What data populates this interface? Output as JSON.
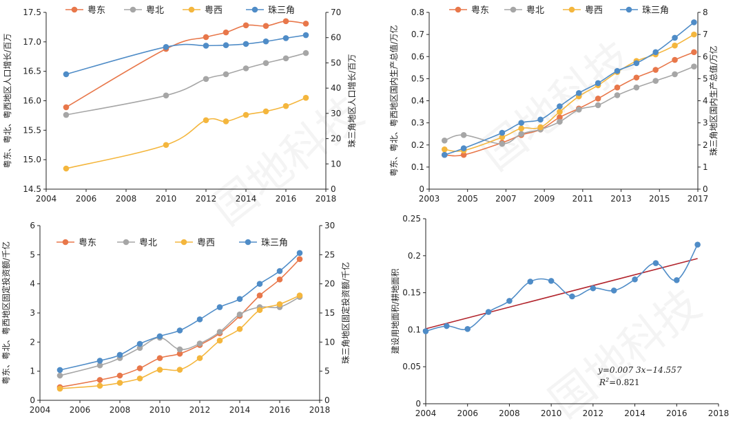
{
  "colors": {
    "yuedong": "#e8774a",
    "yuebei": "#a6a6a6",
    "yuexi": "#f4b63d",
    "prd": "#4f8cc7",
    "trend": "#b2262e"
  },
  "watermark": [
    "国地科技",
    "国地科技",
    "国地科技"
  ],
  "chart_data": [
    {
      "id": "population",
      "type": "line",
      "legend": [
        "粤东",
        "粤北",
        "粤西",
        "珠三角"
      ],
      "xlim": [
        2004,
        2018
      ],
      "xticks": [
        2004,
        2006,
        2008,
        2010,
        2012,
        2014,
        2016,
        2018
      ],
      "ylabel": "粤东、粤北、粤西地区人口增长/百万",
      "y2label": "珠三角地区人口增长/百万",
      "ylim": [
        14.5,
        17.5
      ],
      "yticks": [
        "14.5",
        "15.0",
        "15.5",
        "16.0",
        "16.5",
        "17.0",
        "17.5"
      ],
      "y2lim": [
        0,
        70
      ],
      "y2ticks": [
        "0",
        "10",
        "20",
        "30",
        "40",
        "50",
        "60",
        "70"
      ],
      "series": [
        {
          "name": "粤东",
          "color": "#e8774a",
          "axis": "left",
          "x": [
            2005,
            2010,
            2012,
            2013,
            2014,
            2015,
            2016,
            2017
          ],
          "values": [
            15.89,
            16.88,
            17.08,
            17.16,
            17.28,
            17.27,
            17.35,
            17.31
          ]
        },
        {
          "name": "粤北",
          "color": "#a6a6a6",
          "axis": "left",
          "x": [
            2005,
            2010,
            2012,
            2013,
            2014,
            2015,
            2016,
            2017
          ],
          "values": [
            15.76,
            16.09,
            16.37,
            16.45,
            16.55,
            16.64,
            16.72,
            16.81
          ]
        },
        {
          "name": "粤西",
          "color": "#f4b63d",
          "axis": "left",
          "x": [
            2005,
            2010,
            2012,
            2013,
            2014,
            2015,
            2016,
            2017
          ],
          "values": [
            14.85,
            15.25,
            15.67,
            15.65,
            15.76,
            15.82,
            15.91,
            16.05
          ]
        },
        {
          "name": "珠三角",
          "color": "#4f8cc7",
          "axis": "right",
          "x": [
            2005,
            2010,
            2012,
            2013,
            2014,
            2015,
            2016,
            2017
          ],
          "values": [
            45.5,
            56.3,
            56.8,
            57.0,
            57.5,
            58.5,
            59.8,
            61.0
          ]
        }
      ]
    },
    {
      "id": "gdp",
      "type": "line",
      "legend": [
        "粤东",
        "粤北",
        "粤西",
        "珠三角"
      ],
      "xlim": [
        2003,
        2017
      ],
      "xticks": [
        2003,
        2005,
        2007,
        2009,
        2011,
        2013,
        2015,
        2017
      ],
      "ylabel": "粤东、粤北、粤西地区国内生产总值/万亿",
      "y2label": "珠三角地区国内生产总值/万亿",
      "ylim": [
        0,
        0.8
      ],
      "yticks": [
        "0",
        "0.1",
        "0.2",
        "0.3",
        "0.4",
        "0.5",
        "0.6",
        "0.7",
        "0.8"
      ],
      "y2lim": [
        0,
        8
      ],
      "y2ticks": [
        "0",
        "1",
        "2",
        "3",
        "4",
        "5",
        "6",
        "7",
        "8"
      ],
      "series": [
        {
          "name": "粤东",
          "color": "#e8774a",
          "axis": "left",
          "x": [
            2003.8,
            2004.8,
            2006.8,
            2007.8,
            2008.8,
            2009.8,
            2010.8,
            2011.8,
            2012.8,
            2013.8,
            2014.8,
            2015.8,
            2016.8
          ],
          "values": [
            0.155,
            0.155,
            0.21,
            0.245,
            0.27,
            0.325,
            0.365,
            0.41,
            0.46,
            0.505,
            0.54,
            0.585,
            0.62
          ]
        },
        {
          "name": "粤北",
          "color": "#a6a6a6",
          "axis": "left",
          "x": [
            2003.8,
            2004.8,
            2006.8,
            2007.8,
            2008.8,
            2009.8,
            2010.8,
            2011.8,
            2012.8,
            2013.8,
            2014.8,
            2015.8,
            2016.8
          ],
          "values": [
            0.22,
            0.245,
            0.205,
            0.25,
            0.27,
            0.305,
            0.36,
            0.38,
            0.425,
            0.46,
            0.49,
            0.52,
            0.555
          ]
        },
        {
          "name": "粤西",
          "color": "#f4b63d",
          "axis": "left",
          "x": [
            2003.8,
            2004.8,
            2006.8,
            2007.8,
            2008.8,
            2009.8,
            2010.8,
            2011.8,
            2012.8,
            2013.8,
            2014.8,
            2015.8,
            2016.8
          ],
          "values": [
            0.18,
            0.175,
            0.235,
            0.275,
            0.28,
            0.35,
            0.42,
            0.47,
            0.53,
            0.58,
            0.61,
            0.65,
            0.7
          ]
        },
        {
          "name": "珠三角",
          "color": "#4f8cc7",
          "axis": "right",
          "x": [
            2003.8,
            2004.8,
            2006.8,
            2007.8,
            2008.8,
            2009.8,
            2010.8,
            2011.8,
            2012.8,
            2013.8,
            2014.8,
            2015.8,
            2016.8
          ],
          "values": [
            1.55,
            1.85,
            2.55,
            3.0,
            3.15,
            3.75,
            4.35,
            4.8,
            5.35,
            5.7,
            6.2,
            6.85,
            7.55
          ]
        }
      ]
    },
    {
      "id": "investment",
      "type": "line",
      "legend": [
        "粤东",
        "粤北",
        "粤西",
        "珠三角"
      ],
      "xlim": [
        2004,
        2018
      ],
      "xticks": [
        2004,
        2006,
        2008,
        2010,
        2012,
        2014,
        2016,
        2018
      ],
      "ylabel": "粤东、粤北、粤西地区固定投资额/千亿",
      "y2label": "珠三角地区固定投资额/千亿",
      "ylim": [
        0,
        6
      ],
      "yticks": [
        "0",
        "1",
        "2",
        "3",
        "4",
        "5",
        "6"
      ],
      "y2lim": [
        0,
        30
      ],
      "y2ticks": [
        "0",
        "5",
        "10",
        "15",
        "20",
        "25",
        "30"
      ],
      "series": [
        {
          "name": "粤东",
          "color": "#e8774a",
          "axis": "left",
          "x": [
            2005,
            2007,
            2008,
            2009,
            2010,
            2011,
            2012,
            2013,
            2014,
            2015,
            2016,
            2017
          ],
          "values": [
            0.45,
            0.7,
            0.85,
            1.1,
            1.45,
            1.6,
            1.9,
            2.3,
            2.9,
            3.6,
            4.15,
            4.85
          ]
        },
        {
          "name": "粤北",
          "color": "#a6a6a6",
          "axis": "left",
          "x": [
            2005,
            2007,
            2008,
            2009,
            2010,
            2011,
            2012,
            2013,
            2014,
            2015,
            2016,
            2017
          ],
          "values": [
            0.85,
            1.2,
            1.45,
            1.8,
            2.15,
            1.75,
            1.95,
            2.35,
            2.95,
            3.2,
            3.2,
            3.55
          ]
        },
        {
          "name": "粤西",
          "color": "#f4b63d",
          "axis": "left",
          "x": [
            2005,
            2007,
            2008,
            2009,
            2010,
            2011,
            2012,
            2013,
            2014,
            2015,
            2016,
            2017
          ],
          "values": [
            0.4,
            0.5,
            0.6,
            0.75,
            1.05,
            1.05,
            1.45,
            2.05,
            2.45,
            3.1,
            3.3,
            3.6
          ]
        },
        {
          "name": "珠三角",
          "color": "#4f8cc7",
          "axis": "right",
          "x": [
            2005,
            2007,
            2008,
            2009,
            2010,
            2011,
            2012,
            2013,
            2014,
            2015,
            2016,
            2017
          ],
          "values": [
            5.2,
            6.8,
            7.8,
            9.7,
            11.0,
            12.0,
            13.9,
            16.0,
            17.4,
            20.0,
            22.2,
            25.3
          ]
        }
      ]
    },
    {
      "id": "ratio",
      "type": "scatter",
      "xlim": [
        2004,
        2018
      ],
      "xticks": [
        2004,
        2006,
        2008,
        2010,
        2012,
        2014,
        2016,
        2018
      ],
      "ylabel": "建设用地面积/耕地面积",
      "ylim": [
        0,
        0.25
      ],
      "yticks": [
        "0",
        "0.05",
        "0.1",
        "0.15",
        "0.2",
        "0.25"
      ],
      "series": [
        {
          "name": "建设用地面积/耕地面积",
          "color": "#4f8cc7",
          "x": [
            2004,
            2005,
            2006,
            2007,
            2008,
            2009,
            2010,
            2011,
            2012,
            2013,
            2014,
            2015,
            2016,
            2017
          ],
          "values": [
            0.098,
            0.105,
            0.101,
            0.124,
            0.139,
            0.165,
            0.166,
            0.145,
            0.156,
            0.153,
            0.168,
            0.19,
            0.167,
            0.215
          ]
        }
      ],
      "trendline": {
        "slope": 0.0073,
        "intercept": -14.557,
        "x": [
          2004,
          2017
        ],
        "values": [
          0.1013,
          0.1962
        ]
      },
      "equation": "y=0.007 3x−14.557",
      "r2_label": "R",
      "r2_sup": "2",
      "r2_value": "=0.821"
    }
  ]
}
